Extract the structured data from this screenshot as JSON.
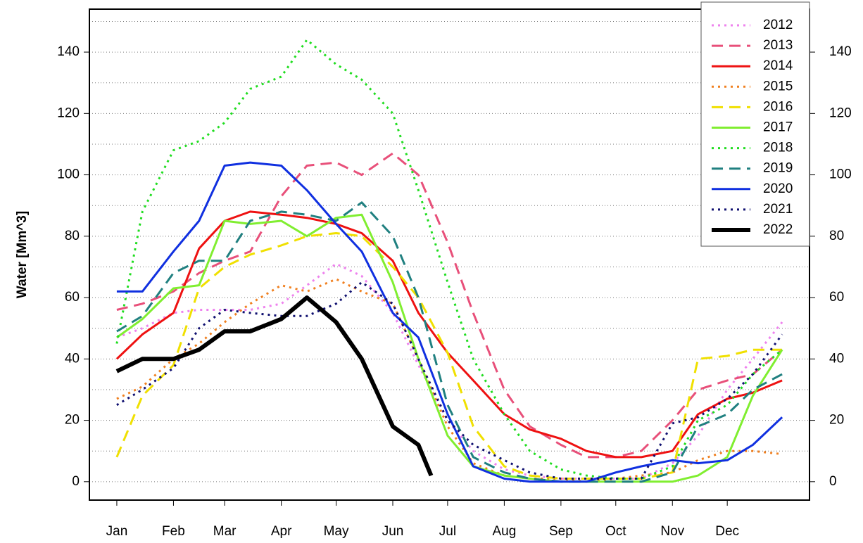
{
  "chart_data": {
    "type": "line",
    "y_label": "Water [Mm^3]",
    "x": [
      1,
      15,
      32,
      46,
      60,
      74,
      91,
      105,
      121,
      135,
      152,
      166,
      182,
      196,
      213,
      227,
      244,
      258,
      274,
      288,
      305,
      319,
      335,
      349,
      365
    ],
    "xlim": [
      -14,
      380
    ],
    "xticks": [
      {
        "value": 1,
        "label": "Jan"
      },
      {
        "value": 32,
        "label": "Feb"
      },
      {
        "value": 60,
        "label": "Mar"
      },
      {
        "value": 91,
        "label": "Apr"
      },
      {
        "value": 121,
        "label": "May"
      },
      {
        "value": 152,
        "label": "Jun"
      },
      {
        "value": 182,
        "label": "Jul"
      },
      {
        "value": 213,
        "label": "Aug"
      },
      {
        "value": 244,
        "label": "Sep"
      },
      {
        "value": 274,
        "label": "Oct"
      },
      {
        "value": 305,
        "label": "Nov"
      },
      {
        "value": 335,
        "label": "Dec"
      }
    ],
    "ylim": [
      -6,
      154
    ],
    "yticks": [
      0,
      20,
      40,
      60,
      80,
      100,
      120,
      140
    ],
    "ygrid": [
      0,
      10,
      20,
      30,
      40,
      50,
      60,
      70,
      80,
      90,
      100,
      110,
      120,
      130,
      140,
      150
    ],
    "right_axis": true,
    "legend": "top-right",
    "series": [
      {
        "name": "2012",
        "color": "#ee82ee",
        "style": "dotted",
        "width": 3,
        "values": [
          47,
          50,
          55,
          56,
          56,
          56,
          58,
          64,
          71,
          67,
          55,
          38,
          20,
          10,
          4,
          2,
          1,
          1,
          1,
          1,
          6,
          15,
          30,
          40,
          52
        ]
      },
      {
        "name": "2013",
        "color": "#e8507a",
        "style": "dashed",
        "width": 3,
        "values": [
          56,
          58,
          62,
          68,
          72,
          75,
          93,
          103,
          104,
          100,
          107,
          100,
          78,
          55,
          30,
          18,
          12,
          8,
          8,
          10,
          20,
          30,
          33,
          35,
          43
        ]
      },
      {
        "name": "2014",
        "color": "#ee1111",
        "style": "solid",
        "width": 3,
        "values": [
          40,
          48,
          55,
          76,
          85,
          88,
          87,
          86,
          84,
          81,
          72,
          55,
          42,
          33,
          22,
          17,
          14,
          10,
          8,
          8,
          10,
          22,
          27,
          29,
          33
        ]
      },
      {
        "name": "2015",
        "color": "#f08020",
        "style": "dotted",
        "width": 3,
        "values": [
          27,
          31,
          40,
          45,
          52,
          58,
          64,
          62,
          66,
          62,
          58,
          40,
          18,
          6,
          2,
          1,
          1,
          0,
          1,
          2,
          3,
          7,
          10,
          10,
          9
        ]
      },
      {
        "name": "2016",
        "color": "#f0e000",
        "style": "dashed",
        "width": 3,
        "values": [
          8,
          28,
          38,
          63,
          70,
          74,
          77,
          80,
          81,
          80,
          70,
          60,
          42,
          18,
          5,
          2,
          1,
          1,
          1,
          1,
          3,
          40,
          41,
          43,
          43
        ]
      },
      {
        "name": "2017",
        "color": "#80ee30",
        "style": "solid",
        "width": 3,
        "values": [
          47,
          53,
          63,
          64,
          85,
          84,
          85,
          80,
          86,
          87,
          65,
          40,
          15,
          5,
          2,
          1,
          0,
          0,
          0,
          0,
          0,
          2,
          8,
          28,
          43
        ]
      },
      {
        "name": "2018",
        "color": "#20dd20",
        "style": "dotted",
        "width": 3,
        "values": [
          45,
          88,
          108,
          111,
          117,
          128,
          132,
          144,
          136,
          131,
          120,
          95,
          65,
          40,
          22,
          10,
          4,
          2,
          1,
          1,
          5,
          20,
          25,
          35,
          43
        ]
      },
      {
        "name": "2019",
        "color": "#208080",
        "style": "dashed",
        "width": 3,
        "values": [
          49,
          54,
          68,
          72,
          72,
          85,
          88,
          87,
          85,
          91,
          80,
          60,
          25,
          8,
          3,
          1,
          0,
          0,
          0,
          0,
          3,
          18,
          22,
          30,
          35
        ]
      },
      {
        "name": "2020",
        "color": "#1030e0",
        "style": "solid",
        "width": 3,
        "values": [
          62,
          62,
          75,
          85,
          103,
          104,
          103,
          95,
          84,
          75,
          55,
          47,
          22,
          5,
          1,
          0,
          0,
          0,
          3,
          5,
          7,
          6,
          7,
          12,
          21
        ]
      },
      {
        "name": "2021",
        "color": "#101070",
        "style": "dotted",
        "width": 3,
        "values": [
          25,
          30,
          37,
          50,
          56,
          55,
          54,
          54,
          58,
          65,
          58,
          40,
          20,
          12,
          7,
          3,
          1,
          1,
          1,
          1,
          19,
          21,
          27,
          35,
          48
        ]
      },
      {
        "name": "2022",
        "color": "#000000",
        "style": "solid",
        "width": 6,
        "x": [
          1,
          15,
          32,
          46,
          60,
          74,
          91,
          105,
          121,
          135,
          152,
          166,
          173
        ],
        "values": [
          36,
          40,
          40,
          43,
          49,
          49,
          53,
          60,
          52,
          40,
          18,
          12,
          2
        ]
      }
    ]
  }
}
